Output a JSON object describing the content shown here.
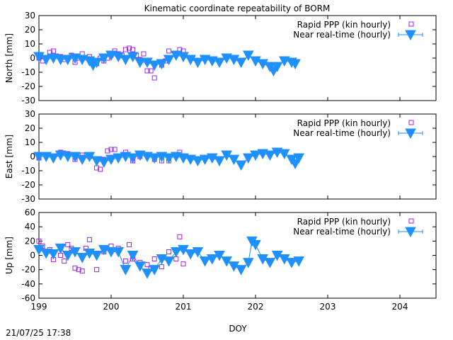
{
  "title": "Kinematic coordinate repeatability of BORM",
  "footer_timestamp": "21/07/25 17:38",
  "xlabel": "DOY",
  "colors": {
    "rapid": "#a020f0",
    "nrt": "#1e90ff"
  },
  "chart_data": [
    {
      "type": "scatter",
      "ylabel": "North [mm]",
      "xlim": [
        199,
        204.5
      ],
      "ylim": [
        -30,
        30
      ],
      "x_ticks": [
        199,
        200,
        201,
        202,
        203,
        204
      ],
      "x_tick_labels": [
        "",
        "",
        "",
        "",
        "",
        ""
      ],
      "y_ticks": [
        -30,
        -20,
        -10,
        0,
        10,
        20,
        30
      ],
      "y_tick_labels": [
        "-30",
        "-20",
        "-10",
        "0",
        "10",
        "20",
        "30"
      ],
      "legend_position": "top-right",
      "series": [
        {
          "name": "Rapid PPP (kin hourly)",
          "marker": "square-open",
          "x": [
            199.0,
            199.05,
            199.1,
            199.15,
            199.2,
            199.3,
            199.35,
            199.45,
            199.5,
            199.55,
            199.6,
            199.7,
            199.8,
            199.85,
            199.9,
            199.95,
            200.0,
            200.05,
            200.1,
            200.15,
            200.2,
            200.25,
            200.3,
            200.35,
            200.4,
            200.45,
            200.5,
            200.55,
            200.6,
            200.7,
            200.75,
            200.8,
            200.9,
            200.95,
            201.0
          ],
          "y": [
            0,
            -2,
            0,
            4,
            5,
            1,
            -1,
            2,
            -3,
            0,
            3,
            1,
            -4,
            0,
            -2,
            0,
            2,
            5,
            3,
            2,
            6,
            7,
            6,
            2,
            -1,
            3,
            -9,
            -9,
            -14,
            -5,
            -2,
            5,
            3,
            6,
            5
          ]
        },
        {
          "name": "Near real-time (hourly)",
          "marker": "triangle-down",
          "x": [
            199.0,
            199.1,
            199.2,
            199.3,
            199.4,
            199.5,
            199.6,
            199.7,
            199.75,
            199.8,
            199.9,
            200.0,
            200.1,
            200.2,
            200.3,
            200.4,
            200.5,
            200.6,
            200.7,
            200.8,
            200.9,
            201.0,
            201.1,
            201.2,
            201.3,
            201.4,
            201.5,
            201.6,
            201.7,
            201.8,
            201.9,
            202.0,
            202.1,
            202.2,
            202.25,
            202.3,
            202.4,
            202.5,
            202.55
          ],
          "y": [
            1,
            -1,
            0,
            -1,
            -1,
            0,
            -1,
            -2,
            -5,
            -3,
            0,
            2,
            1,
            -1,
            1,
            -3,
            -3,
            -5,
            -4,
            -1,
            2,
            1,
            -1,
            -3,
            -1,
            -2,
            -3,
            0,
            -1,
            -3,
            2,
            -2,
            -4,
            -6,
            -9,
            -6,
            -2,
            -3,
            -4
          ]
        }
      ]
    },
    {
      "type": "scatter",
      "ylabel": "East [mm]",
      "xlim": [
        199,
        204.5
      ],
      "ylim": [
        -30,
        30
      ],
      "x_ticks": [
        199,
        200,
        201,
        202,
        203,
        204
      ],
      "x_tick_labels": [
        "",
        "",
        "",
        "",
        "",
        ""
      ],
      "y_ticks": [
        -30,
        -20,
        -10,
        0,
        10,
        20,
        30
      ],
      "y_tick_labels": [
        "-30",
        "-20",
        "-10",
        "0",
        "10",
        "20",
        "30"
      ],
      "legend_position": "top-right",
      "series": [
        {
          "name": "Rapid PPP (kin hourly)",
          "marker": "square-open",
          "x": [
            199.0,
            199.1,
            199.2,
            199.3,
            199.4,
            199.5,
            199.6,
            199.7,
            199.8,
            199.85,
            199.9,
            199.95,
            200.0,
            200.05,
            200.1,
            200.2,
            200.3,
            200.4,
            200.5,
            200.6,
            200.7,
            200.8,
            200.9,
            200.95
          ],
          "y": [
            -1,
            1,
            0,
            3,
            2,
            -2,
            1,
            0,
            -8,
            -9,
            -2,
            4,
            5,
            5,
            0,
            3,
            -3,
            0,
            1,
            -2,
            -3,
            -3,
            1,
            3
          ]
        },
        {
          "name": "Near real-time (hourly)",
          "marker": "triangle-down",
          "x": [
            199.0,
            199.1,
            199.2,
            199.3,
            199.4,
            199.5,
            199.6,
            199.7,
            199.8,
            199.9,
            200.0,
            200.1,
            200.2,
            200.3,
            200.4,
            200.5,
            200.6,
            200.7,
            200.8,
            200.9,
            201.0,
            201.1,
            201.2,
            201.3,
            201.4,
            201.5,
            201.6,
            201.7,
            201.8,
            201.9,
            202.0,
            202.1,
            202.2,
            202.3,
            202.4,
            202.5,
            202.55,
            202.6
          ],
          "y": [
            0,
            0,
            -1,
            1,
            0,
            0,
            -2,
            0,
            -3,
            -4,
            -2,
            -1,
            0,
            -1,
            1,
            0,
            -1,
            0,
            -1,
            0,
            -1,
            -2,
            -3,
            -2,
            -1,
            -3,
            1,
            -2,
            -6,
            -1,
            1,
            2,
            1,
            3,
            2,
            -2,
            -5,
            -1
          ]
        }
      ]
    },
    {
      "type": "scatter",
      "ylabel": "Up [mm]",
      "xlim": [
        199,
        204.5
      ],
      "ylim": [
        -60,
        60
      ],
      "x_ticks": [
        199,
        200,
        201,
        202,
        203,
        204
      ],
      "x_tick_labels": [
        "199",
        "200",
        "201",
        "202",
        "203",
        "204"
      ],
      "y_ticks": [
        -60,
        -40,
        -20,
        0,
        20,
        40,
        60
      ],
      "y_tick_labels": [
        "-60",
        "-40",
        "-20",
        "0",
        "20",
        "40",
        "60"
      ],
      "legend_position": "top-right",
      "series": [
        {
          "name": "Rapid PPP (kin hourly)",
          "marker": "square-open",
          "x": [
            199.0,
            199.05,
            199.1,
            199.15,
            199.2,
            199.3,
            199.35,
            199.4,
            199.45,
            199.5,
            199.55,
            199.6,
            199.65,
            199.7,
            199.8,
            199.9,
            200.0,
            200.1,
            200.2,
            200.25,
            200.3,
            200.4,
            200.5,
            200.55,
            200.6,
            200.7,
            200.8,
            200.9,
            200.95,
            201.0
          ],
          "y": [
            20,
            13,
            5,
            8,
            -6,
            0,
            -8,
            15,
            10,
            -18,
            -20,
            -22,
            10,
            22,
            -20,
            5,
            13,
            10,
            -8,
            15,
            -5,
            -10,
            -13,
            -18,
            -5,
            -16,
            5,
            -5,
            26,
            -12
          ]
        },
        {
          "name": "Near real-time (hourly)",
          "marker": "triangle-down",
          "x": [
            199.0,
            199.1,
            199.2,
            199.3,
            199.4,
            199.5,
            199.6,
            199.7,
            199.8,
            199.9,
            200.0,
            200.1,
            200.2,
            200.3,
            200.4,
            200.5,
            200.6,
            200.7,
            200.8,
            200.9,
            201.0,
            201.1,
            201.2,
            201.3,
            201.4,
            201.5,
            201.6,
            201.7,
            201.8,
            201.9,
            201.95,
            202.0,
            202.1,
            202.2,
            202.3,
            202.4,
            202.5,
            202.6
          ],
          "y": [
            8,
            3,
            2,
            10,
            0,
            5,
            -3,
            3,
            0,
            8,
            5,
            5,
            -20,
            0,
            -15,
            -25,
            -20,
            -5,
            -8,
            5,
            8,
            2,
            5,
            -8,
            -5,
            0,
            -8,
            -15,
            -20,
            -10,
            20,
            15,
            -5,
            -10,
            0,
            -5,
            -10,
            -8
          ]
        }
      ]
    }
  ]
}
